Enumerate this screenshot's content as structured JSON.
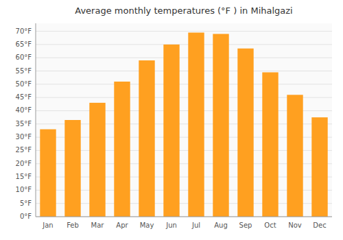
{
  "chart_data": {
    "type": "bar",
    "title": "Average monthly temperatures (°F ) in Mihalgazi",
    "categories": [
      "Jan",
      "Feb",
      "Mar",
      "Apr",
      "May",
      "Jun",
      "Jul",
      "Aug",
      "Sep",
      "Oct",
      "Nov",
      "Dec"
    ],
    "values": [
      33,
      36.5,
      43,
      51,
      59,
      65,
      69.5,
      69,
      63.5,
      54.5,
      46,
      37.5
    ],
    "color": "#FFA020",
    "ylim": [
      0,
      73
    ],
    "yticks": [
      {
        "value": 0,
        "label": "0°F"
      },
      {
        "value": 5,
        "label": "5°F"
      },
      {
        "value": 10,
        "label": "10°F"
      },
      {
        "value": 15,
        "label": "15°F"
      },
      {
        "value": 20,
        "label": "20°F"
      },
      {
        "value": 25,
        "label": "25°F"
      },
      {
        "value": 30,
        "label": "30°F"
      },
      {
        "value": 35,
        "label": "35°F"
      },
      {
        "value": 40,
        "label": "40°F"
      },
      {
        "value": 45,
        "label": "45°F"
      },
      {
        "value": 50,
        "label": "50°F"
      },
      {
        "value": 55,
        "label": "55°F"
      },
      {
        "value": 60,
        "label": "60°F"
      },
      {
        "value": 65,
        "label": "65°F"
      },
      {
        "value": 70,
        "label": "70°F"
      }
    ],
    "grid": true
  }
}
